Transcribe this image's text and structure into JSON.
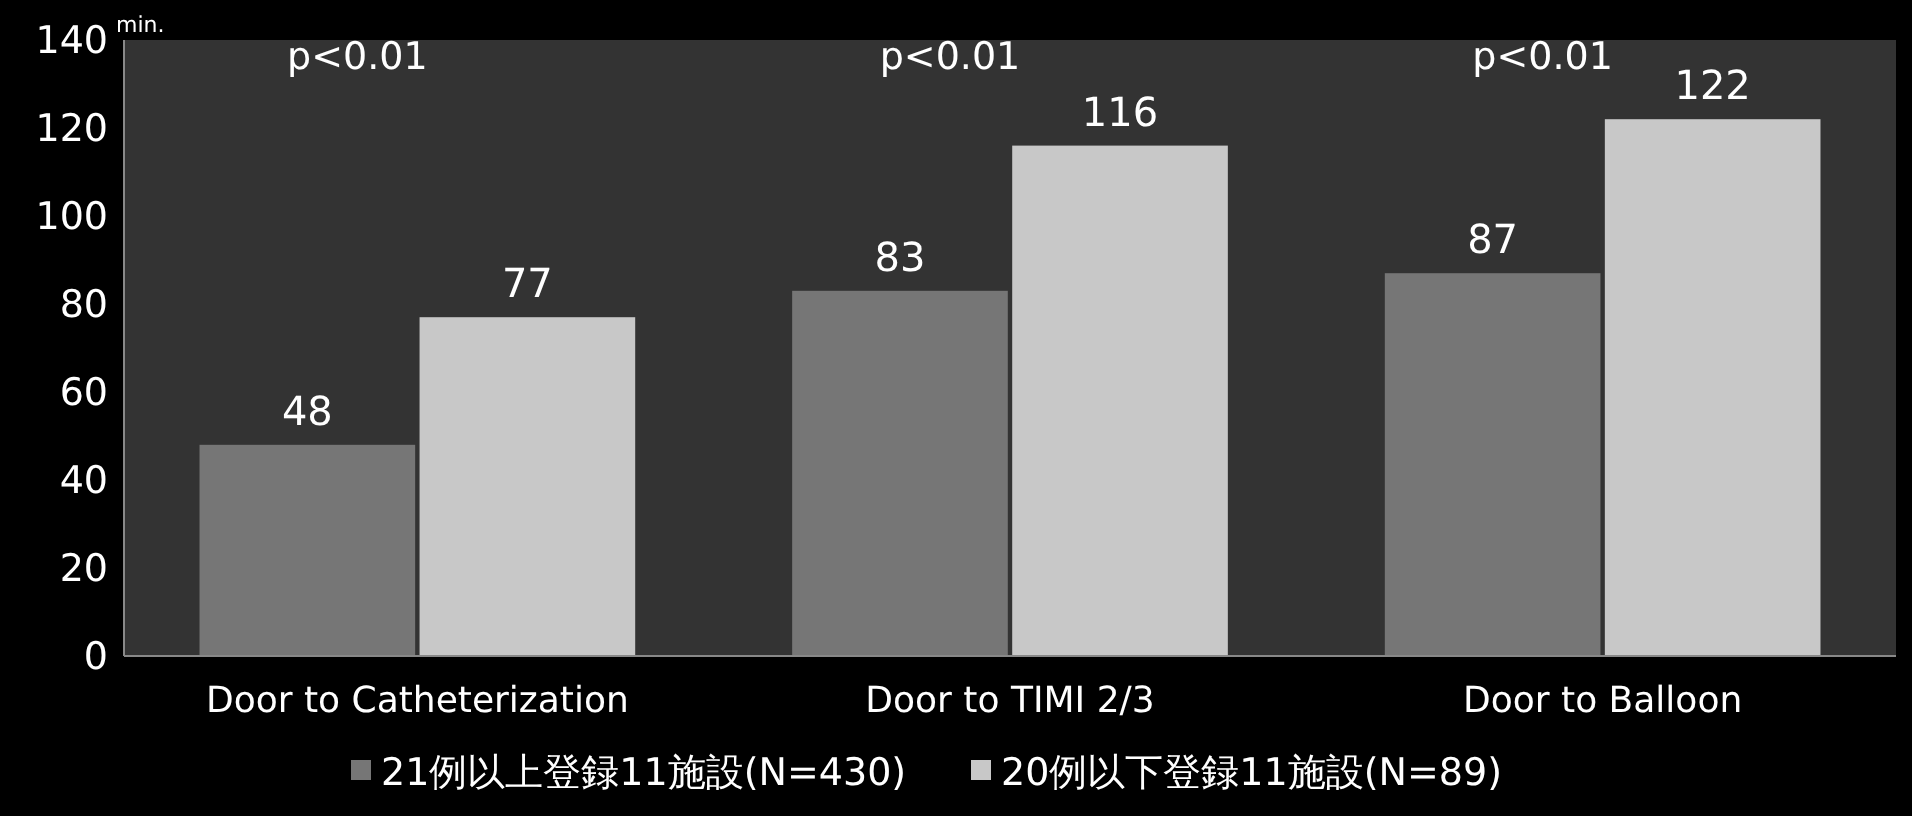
{
  "chart_data": {
    "type": "bar",
    "ylabel": "min.",
    "categories": [
      "Door to Catheterization",
      "Door to TIMI 2/3",
      "Door to Balloon"
    ],
    "series": [
      {
        "name": "21例以上登録11施設(N=430)",
        "color": "#767676",
        "values": [
          48,
          83,
          87
        ]
      },
      {
        "name": "20例以下登録11施設(N=89)",
        "color": "#c8c8c8",
        "values": [
          77,
          116,
          122
        ]
      }
    ],
    "ylim": [
      0,
      140
    ],
    "yticks": [
      0,
      20,
      40,
      60,
      80,
      100,
      120,
      140
    ],
    "data_labels": true,
    "legend": "bottom",
    "grid": false,
    "annotations": [
      "p<0.01",
      "p<0.01",
      "p<0.01"
    ]
  }
}
